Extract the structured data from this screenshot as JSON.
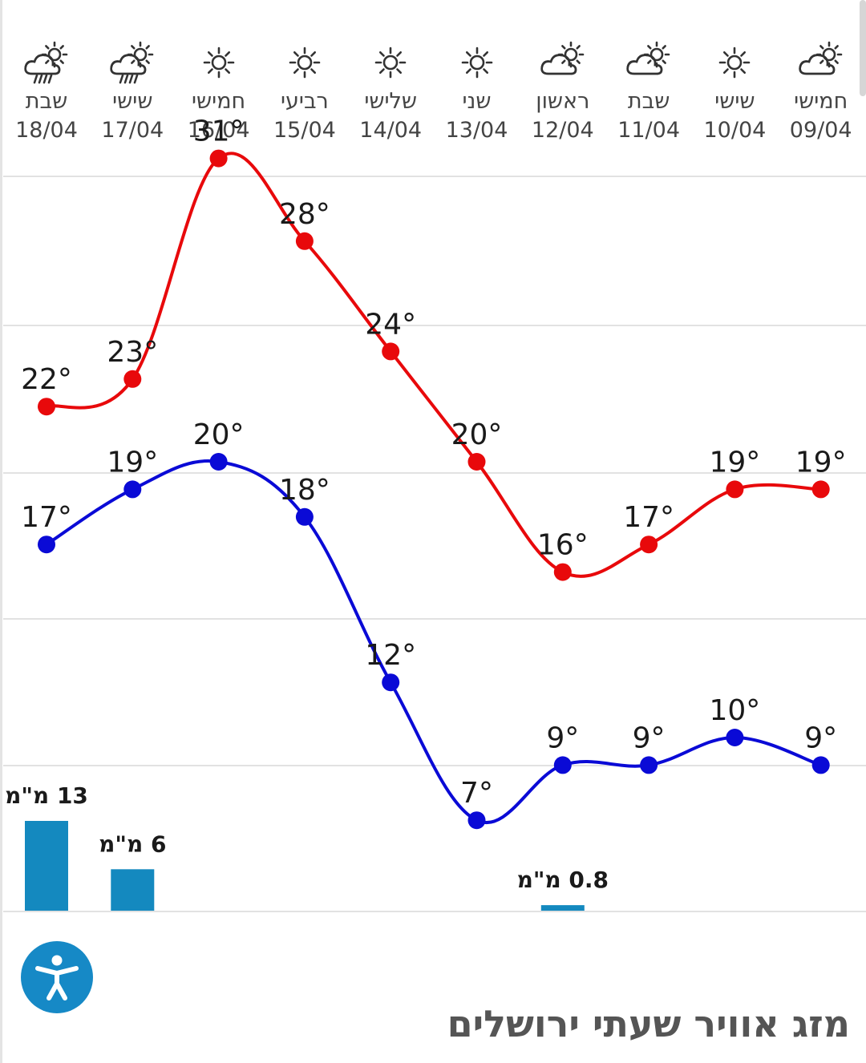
{
  "page": {
    "title": "מזג אוויר שעתי ירושלים"
  },
  "days": [
    {
      "name": "שבת",
      "date": "18/04",
      "icon": "rain-cloud-icon"
    },
    {
      "name": "שישי",
      "date": "17/04",
      "icon": "rain-cloud-icon"
    },
    {
      "name": "חמישי",
      "date": "16/04",
      "icon": "sun-icon"
    },
    {
      "name": "רביעי",
      "date": "15/04",
      "icon": "sun-icon"
    },
    {
      "name": "שלישי",
      "date": "14/04",
      "icon": "sun-icon"
    },
    {
      "name": "שני",
      "date": "13/04",
      "icon": "sun-icon"
    },
    {
      "name": "ראשון",
      "date": "12/04",
      "icon": "partly-cloudy-icon"
    },
    {
      "name": "שבת",
      "date": "11/04",
      "icon": "partly-cloudy-icon"
    },
    {
      "name": "שישי",
      "date": "10/04",
      "icon": "sun-icon"
    },
    {
      "name": "חמישי",
      "date": "09/04",
      "icon": "partly-cloudy-icon"
    }
  ],
  "colors": {
    "max": "#e8090b",
    "min": "#0a0ad6",
    "precip": "#1489bf",
    "accessibility": "#1689c6"
  },
  "chart_data": {
    "type": "line",
    "x": [
      "18/04",
      "17/04",
      "16/04",
      "15/04",
      "14/04",
      "13/04",
      "12/04",
      "11/04",
      "10/04",
      "09/04"
    ],
    "series": [
      {
        "values": [
          22,
          23,
          31,
          28,
          24,
          20,
          16,
          17,
          19,
          19
        ],
        "labels": [
          "22°",
          "23°",
          "31°",
          "28°",
          "24°",
          "20°",
          "16°",
          "17°",
          "19°",
          "19°"
        ]
      },
      {
        "values": [
          17,
          19,
          20,
          18,
          12,
          7,
          9,
          9,
          10,
          9
        ],
        "labels": [
          "17°",
          "19°",
          "20°",
          "18°",
          "12°",
          "7°",
          "9°",
          "9°",
          "10°",
          "9°"
        ]
      }
    ],
    "precipitation": [
      {
        "date": "18/04",
        "value": 13,
        "label": "13 מ\"מ"
      },
      {
        "date": "17/04",
        "value": 6,
        "label": "6 מ\"מ"
      },
      {
        "date": "12/04",
        "value": 0.8,
        "label": "0.8 מ\"מ"
      }
    ],
    "grid": true
  }
}
